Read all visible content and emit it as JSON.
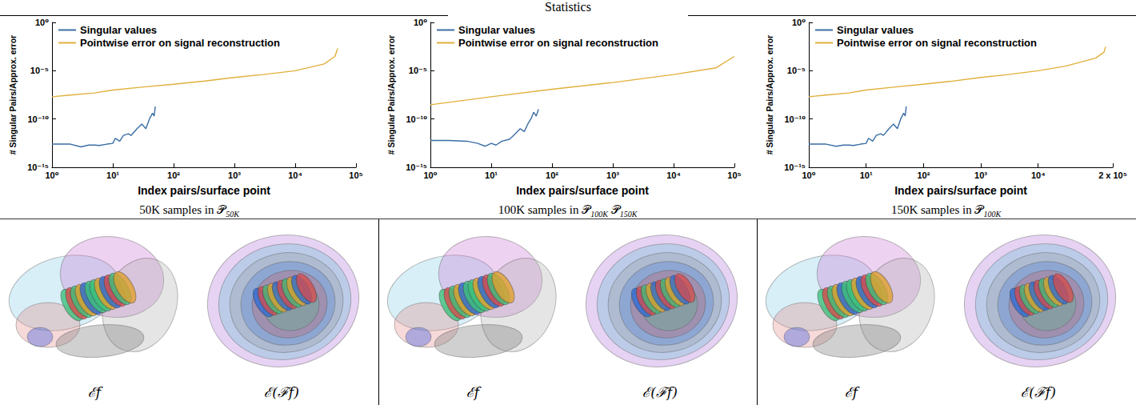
{
  "title": "Statistics",
  "chart_data": [
    {
      "type": "line",
      "log": true,
      "grid": false,
      "legend": "upper left",
      "xlabel": "Index pairs/surface point",
      "ylabel": "# Singular Pairs/Approx. error",
      "xlim": [
        1,
        100000
      ],
      "xticks": [
        {
          "value": 1,
          "label": "10⁰"
        },
        {
          "value": 10,
          "label": "10¹"
        },
        {
          "value": 100,
          "label": "10²"
        },
        {
          "value": 1000,
          "label": "10³"
        },
        {
          "value": 10000,
          "label": "10⁴"
        },
        {
          "value": 100000,
          "label": "10⁵"
        }
      ],
      "ylim": [
        1e-15,
        1
      ],
      "yticks": [
        {
          "value": 1e-15,
          "label": "10⁻¹⁵"
        },
        {
          "value": 1e-10,
          "label": "10⁻¹⁰"
        },
        {
          "value": 1e-05,
          "label": "10⁻⁵"
        },
        {
          "value": 1,
          "label": "10⁰"
        }
      ],
      "series": [
        {
          "name": "Singular values",
          "color": "#3b6ea5",
          "x": [
            1,
            2,
            3,
            4,
            5,
            6,
            8,
            10,
            11,
            13,
            15,
            18,
            20,
            25,
            30,
            35,
            40,
            45,
            48,
            50
          ],
          "values": [
            2.5e-13,
            2.5e-13,
            1.3e-13,
            2e-13,
            2e-13,
            1.8e-13,
            2.5e-13,
            3e-13,
            1e-12,
            5e-13,
            2e-12,
            3e-12,
            2e-12,
            1e-11,
            3e-11,
            1e-11,
            1e-10,
            4e-10,
            2e-10,
            2e-09
          ]
        },
        {
          "name": "Pointwise error on signal reconstruction",
          "color": "#e1b03c",
          "x": [
            1,
            2,
            5,
            10,
            30,
            100,
            300,
            1000,
            3000,
            10000,
            30000,
            45000,
            50000
          ],
          "values": [
            2e-08,
            3e-08,
            5e-08,
            1e-07,
            2e-07,
            4e-07,
            8e-07,
            2e-06,
            4e-06,
            1e-05,
            5e-05,
            0.0003,
            0.002
          ]
        }
      ]
    },
    {
      "type": "line",
      "log": true,
      "grid": false,
      "legend": "upper left",
      "xlabel": "Index pairs/surface point",
      "ylabel": "# Singular Pairs/Approx. error",
      "xlim": [
        1,
        100000
      ],
      "xticks": [
        {
          "value": 1,
          "label": "10⁰"
        },
        {
          "value": 10,
          "label": "10¹"
        },
        {
          "value": 100,
          "label": "10²"
        },
        {
          "value": 1000,
          "label": "10³"
        },
        {
          "value": 10000,
          "label": "10⁴"
        },
        {
          "value": 100000,
          "label": "10⁵"
        }
      ],
      "ylim": [
        1e-15,
        1
      ],
      "yticks": [
        {
          "value": 1e-15,
          "label": "10⁻¹⁵"
        },
        {
          "value": 1e-10,
          "label": "10⁻¹⁰"
        },
        {
          "value": 1e-05,
          "label": "10⁻⁵"
        },
        {
          "value": 1,
          "label": "10⁰"
        }
      ],
      "series": [
        {
          "name": "Singular values",
          "color": "#3b6ea5",
          "x": [
            1,
            2,
            4,
            6,
            8,
            10,
            12,
            15,
            20,
            25,
            30,
            35,
            40,
            45,
            50,
            55,
            60
          ],
          "values": [
            6e-13,
            6e-13,
            5e-13,
            3e-13,
            1.5e-13,
            3e-13,
            2e-13,
            5e-13,
            8e-13,
            3e-12,
            1e-11,
            5e-12,
            3e-11,
            1e-10,
            5e-10,
            2e-10,
            1e-09
          ]
        },
        {
          "name": "Pointwise error on signal reconstruction",
          "color": "#e1b03c",
          "x": [
            1,
            10,
            100,
            1000,
            10000,
            50000,
            100000
          ],
          "values": [
            3e-09,
            2e-08,
            1.2e-07,
            6e-07,
            4e-06,
            2e-05,
            0.0003
          ]
        }
      ]
    },
    {
      "type": "line",
      "log": true,
      "grid": false,
      "legend": "upper left",
      "xlabel": "Index pairs/surface point",
      "ylabel": "# Singular Pairs/Approx. error",
      "xlim": [
        1,
        200000
      ],
      "xticks": [
        {
          "value": 1,
          "label": "10⁰"
        },
        {
          "value": 10,
          "label": "10¹"
        },
        {
          "value": 100,
          "label": "10²"
        },
        {
          "value": 1000,
          "label": "10³"
        },
        {
          "value": 10000,
          "label": "10⁴"
        },
        {
          "value": 200000,
          "label": "2 x 10⁵"
        }
      ],
      "ylim": [
        1e-15,
        1
      ],
      "yticks": [
        {
          "value": 1e-15,
          "label": "10⁻¹⁵"
        },
        {
          "value": 1e-10,
          "label": "10⁻¹⁰"
        },
        {
          "value": 1e-05,
          "label": "10⁻⁵"
        },
        {
          "value": 1,
          "label": "10⁰"
        }
      ],
      "series": [
        {
          "name": "Singular values",
          "color": "#3b6ea5",
          "x": [
            1,
            2,
            3,
            4,
            5,
            6,
            8,
            10,
            11,
            13,
            15,
            18,
            20,
            25,
            30,
            35,
            40,
            45,
            48,
            50
          ],
          "values": [
            2.5e-13,
            2.5e-13,
            1.5e-13,
            2e-13,
            2e-13,
            1.8e-13,
            2.5e-13,
            3e-13,
            1e-12,
            5e-13,
            2e-12,
            3e-12,
            2e-12,
            1e-11,
            3e-11,
            1e-11,
            1e-10,
            4e-10,
            2e-10,
            2e-09
          ]
        },
        {
          "name": "Pointwise error on signal reconstruction",
          "color": "#e1b03c",
          "x": [
            1,
            2,
            5,
            10,
            30,
            100,
            300,
            1000,
            3000,
            10000,
            30000,
            100000,
            140000,
            150000
          ],
          "values": [
            2e-08,
            3e-08,
            5e-08,
            1e-07,
            2e-07,
            4e-07,
            8e-07,
            2e-06,
            4e-06,
            1e-05,
            3e-05,
            0.0002,
            0.0008,
            0.003
          ]
        }
      ]
    }
  ],
  "panels": [
    {
      "caption": {
        "text": "50K samples in ",
        "terms": [
          {
            "base": "𝒫",
            "sub": "50K"
          }
        ]
      },
      "images": [
        {
          "label": "ℰf"
        },
        {
          "label": "ℰ(ℱf)"
        }
      ]
    },
    {
      "caption": {
        "text": "100K samples in ",
        "terms": [
          {
            "base": "𝒫",
            "sub": "100K"
          },
          {
            "base": "𝒫",
            "sub": "150K"
          }
        ]
      },
      "images": [
        {
          "label": "ℰf"
        },
        {
          "label": "ℰ(ℱf)"
        }
      ]
    },
    {
      "caption": {
        "text": "150K samples in ",
        "terms": [
          {
            "base": "𝒫",
            "sub": "100K"
          }
        ]
      },
      "images": [
        {
          "label": "ℰf"
        },
        {
          "label": "ℰ(ℱf)"
        }
      ]
    }
  ]
}
